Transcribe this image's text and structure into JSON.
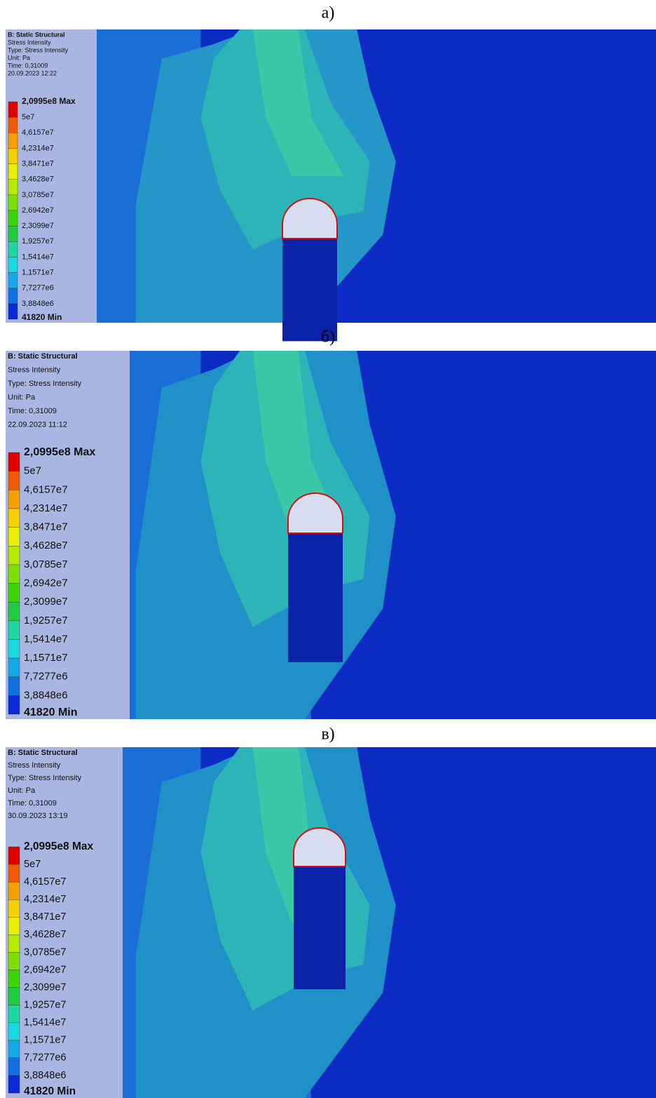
{
  "panels": [
    {
      "label": "а)",
      "header": [
        "B: Static Structural",
        "Stress Intensity",
        "Type: Stress Intensity",
        "Unit: Pa",
        "Time: 0,31009",
        "20.09.2023 12:22"
      ],
      "legend": [
        "2,0995e8 Max",
        "5e7",
        "4,6157e7",
        "4,2314e7",
        "3,8471e7",
        "3,4628e7",
        "3,0785e7",
        "2,6942e7",
        "2,3099e7",
        "1,9257e7",
        "1,5414e7",
        "1,1571e7",
        "7,7277e6",
        "3,8848e6",
        "41820 Min"
      ]
    },
    {
      "label": "б)",
      "header": [
        "B: Static Structural",
        "Stress Intensity",
        "Type: Stress Intensity",
        "Unit: Pa",
        "Time: 0,31009",
        "22.09.2023 11:12"
      ],
      "legend": [
        "2,0995e8 Max",
        "5e7",
        "4,6157e7",
        "4,2314e7",
        "3,8471e7",
        "3,4628e7",
        "3,0785e7",
        "2,6942e7",
        "2,3099e7",
        "1,9257e7",
        "1,5414e7",
        "1,1571e7",
        "7,7277e6",
        "3,8848e6",
        "41820 Min"
      ]
    },
    {
      "label": "в)",
      "header": [
        "B: Static Structural",
        "Stress Intensity",
        "Type: Stress Intensity",
        "Unit: Pa",
        "Time: 0,31009",
        "30.09.2023 13:19"
      ],
      "legend": [
        "2,0995e8 Max",
        "5e7",
        "4,6157e7",
        "4,2314e7",
        "3,8471e7",
        "3,4628e7",
        "3,0785e7",
        "2,6942e7",
        "2,3099e7",
        "1,9257e7",
        "1,5414e7",
        "1,1571e7",
        "7,7277e6",
        "3,8848e6",
        "41820 Min"
      ]
    }
  ]
}
